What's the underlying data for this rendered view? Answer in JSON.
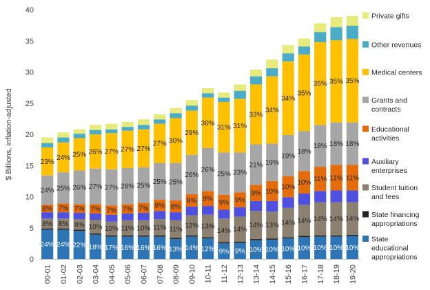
{
  "chart_data": {
    "type": "bar",
    "stacked": true,
    "title": "",
    "xlabel": "",
    "ylabel": "$ Billions, inflation-adjusted",
    "ylim": [
      0,
      40
    ],
    "yticks": [
      0,
      5,
      10,
      15,
      20,
      25,
      30,
      35,
      40
    ],
    "grid": false,
    "legend_position": "right",
    "categories": [
      "00-01",
      "01-02",
      "02-03",
      "03-04",
      "04-05",
      "05-06",
      "06-07",
      "07-08",
      "08-09",
      "09-10",
      "10-11",
      "11-12",
      "12-13",
      "13-14",
      "14-15",
      "15-16",
      "16-17",
      "17-18",
      "18-19",
      "19-20"
    ],
    "series": [
      {
        "name": "State educational appropriations",
        "color": "#2E75B6",
        "values": [
          4.7,
          4.7,
          4.5,
          3.9,
          3.6,
          3.6,
          3.6,
          3.6,
          3.2,
          3.6,
          3.3,
          2.5,
          2.6,
          3.0,
          3.1,
          3.3,
          3.5,
          3.6,
          3.6,
          3.7
        ],
        "labels": [
          "24%",
          "24%",
          "22%",
          "18%",
          "17%",
          "16%",
          "16%",
          "16%",
          "13%",
          "14%",
          "12%",
          "9%",
          "9%",
          "10%",
          "10%",
          "10%",
          "10%",
          "10%",
          "10%",
          "10%"
        ]
      },
      {
        "name": "State financing appropriations",
        "color": "#262626",
        "values": [
          0.2,
          0.2,
          0.2,
          0.2,
          0.2,
          0.2,
          0.2,
          0.2,
          0.2,
          0.2,
          0.2,
          0.2,
          0.2,
          0.2,
          0.2,
          0.2,
          0.2,
          0.2,
          0.2,
          0.2
        ],
        "labels": []
      },
      {
        "name": "Student tuition and fees",
        "color": "#8C8070",
        "values": [
          1.6,
          1.6,
          1.7,
          2.2,
          2.2,
          2.4,
          2.4,
          2.6,
          2.8,
          3.2,
          3.6,
          3.8,
          4.0,
          4.5,
          4.3,
          4.7,
          5.0,
          5.3,
          5.3,
          5.2
        ],
        "labels": [
          "8%",
          "8%",
          "8%",
          "10%",
          "10%",
          "11%",
          "10%",
          "11%",
          "11%",
          "12%",
          "13%",
          "14%",
          "14%",
          "14%",
          "13%",
          "14%",
          "14%",
          "14%",
          "14%",
          "14%"
        ]
      },
      {
        "name": "Auxiliary enterprises",
        "color": "#4F4FE0",
        "values": [
          1.0,
          1.0,
          1.0,
          1.0,
          1.1,
          1.1,
          1.2,
          1.3,
          1.3,
          1.4,
          1.4,
          1.4,
          1.5,
          1.6,
          1.7,
          1.7,
          1.8,
          1.8,
          1.9,
          1.9
        ],
        "labels": []
      },
      {
        "name": "Educational activities",
        "color": "#E46C0A",
        "values": [
          1.2,
          1.4,
          1.4,
          1.5,
          1.5,
          1.5,
          1.6,
          1.8,
          1.9,
          2.0,
          2.4,
          2.4,
          2.4,
          2.6,
          3.2,
          3.4,
          3.6,
          3.9,
          4.1,
          4.1
        ],
        "labels": [
          "6%",
          "7%",
          "7%",
          "7%",
          "7%",
          "7%",
          "7%",
          "8%",
          "8%",
          "8%",
          "9%",
          "9%",
          "9%",
          "9%",
          "10%",
          "10%",
          "10%",
          "11%",
          "11%",
          "11%"
        ]
      },
      {
        "name": "Grants and contracts",
        "color": "#A6A6A6",
        "values": [
          4.7,
          5.0,
          5.4,
          5.7,
          5.8,
          5.8,
          5.7,
          5.9,
          6.0,
          6.3,
          6.9,
          6.8,
          6.4,
          6.5,
          6.0,
          6.6,
          6.4,
          6.7,
          6.8,
          6.8
        ],
        "labels": [
          "24%",
          "25%",
          "26%",
          "27%",
          "27%",
          "26%",
          "25%",
          "25%",
          "25%",
          "26%",
          "26%",
          "25%",
          "23%",
          "21%",
          "19%",
          "19%",
          "18%",
          "18%",
          "18%",
          "18%"
        ]
      },
      {
        "name": "Medical centers",
        "color": "#FFC000",
        "values": [
          4.5,
          4.8,
          5.2,
          5.5,
          5.8,
          6.0,
          6.1,
          6.3,
          7.2,
          7.1,
          8.1,
          8.1,
          8.6,
          9.6,
          10.8,
          11.8,
          12.3,
          13.3,
          13.2,
          13.4
        ],
        "labels": [
          "23%",
          "24%",
          "25%",
          "26%",
          "27%",
          "27%",
          "27%",
          "27%",
          "30%",
          "29%",
          "30%",
          "31%",
          "31%",
          "33%",
          "34%",
          "34%",
          "35%",
          "35%",
          "35%",
          "35%"
        ]
      },
      {
        "name": "Other revenues",
        "color": "#4BACC6",
        "values": [
          0.7,
          0.8,
          0.7,
          0.7,
          0.6,
          0.6,
          0.7,
          0.7,
          0.8,
          0.8,
          0.7,
          0.7,
          1.3,
          1.3,
          1.3,
          1.3,
          1.3,
          1.6,
          2.1,
          2.1
        ],
        "labels": []
      },
      {
        "name": "Private gifts",
        "color": "#E6EB7C",
        "values": [
          0.9,
          0.8,
          0.7,
          0.8,
          0.9,
          0.8,
          0.9,
          0.8,
          0.8,
          0.9,
          0.8,
          0.8,
          1.0,
          1.1,
          1.4,
          1.3,
          1.3,
          1.4,
          1.6,
          1.6
        ],
        "labels": []
      }
    ]
  }
}
